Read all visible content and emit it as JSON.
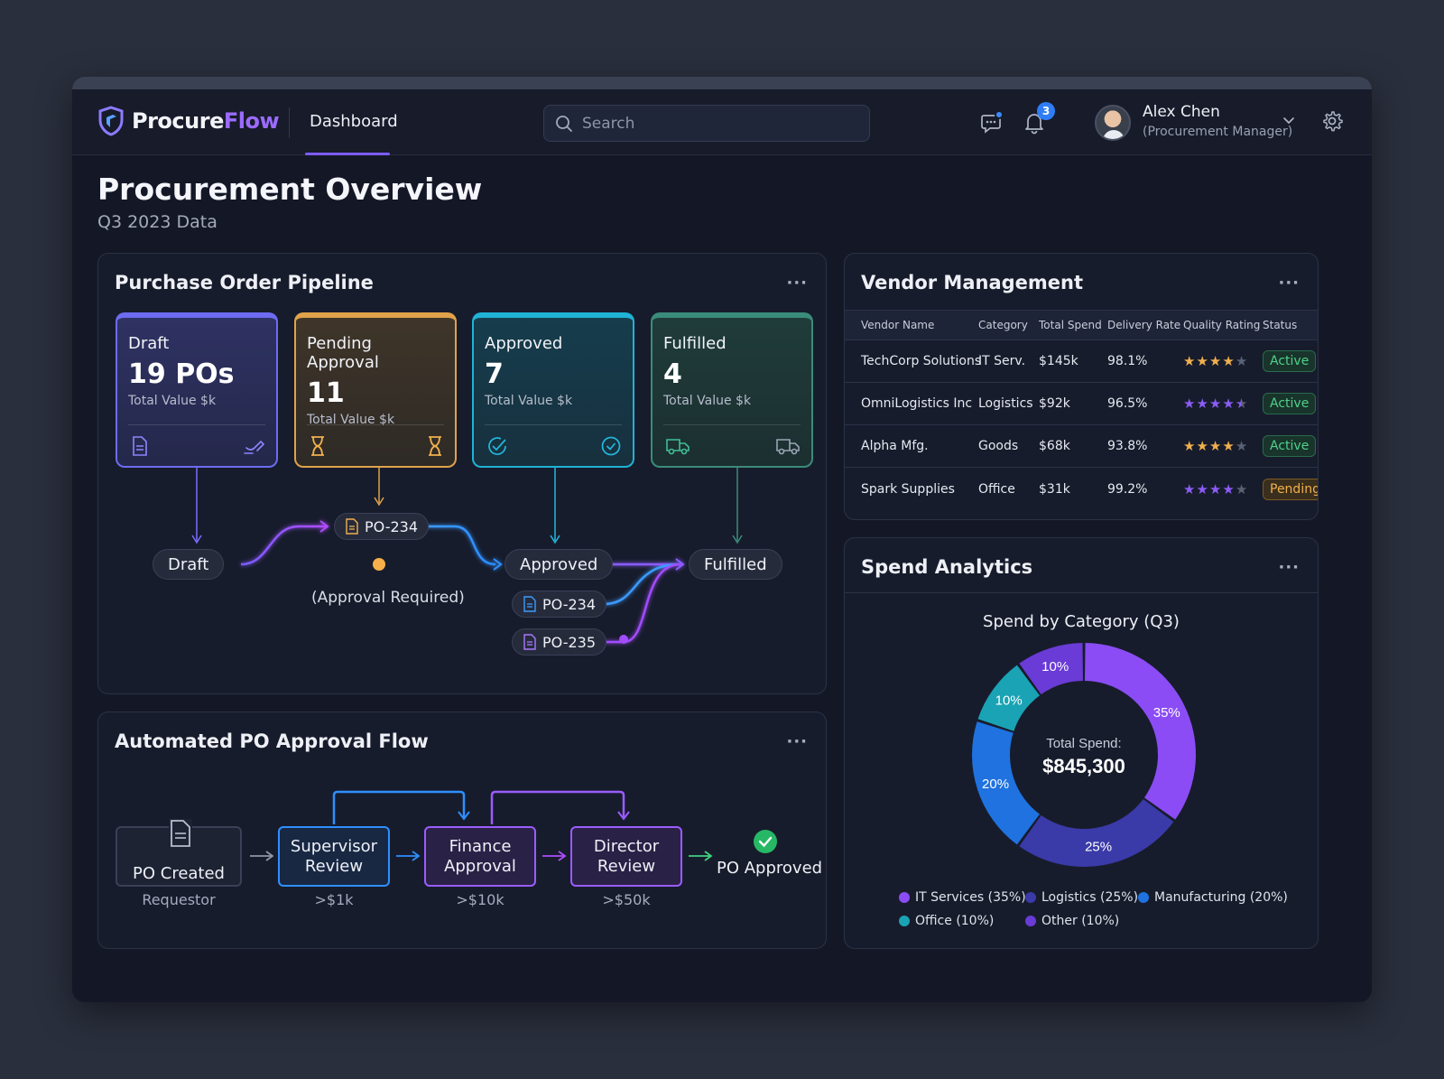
{
  "app": {
    "logo_part1": "Procure",
    "logo_part2": "Flow",
    "nav_tab": "Dashboard",
    "search_placeholder": "Search",
    "notifications_count": "3",
    "user_name": "Alex Chen",
    "user_role": "(Procurement Manager)"
  },
  "page": {
    "title": "Procurement Overview",
    "subtitle": "Q3 2023 Data"
  },
  "pipeline": {
    "title": "Purchase Order Pipeline",
    "menu": "···",
    "stages": [
      {
        "name": "Draft",
        "count": "19 POs",
        "sub": "Total Value $k"
      },
      {
        "name": "Pending Approval",
        "count": "11",
        "sub": "Total Value $k"
      },
      {
        "name": "Approved",
        "count": "7",
        "sub": "Total Value $k"
      },
      {
        "name": "Fulfilled",
        "count": "4",
        "sub": "Total Value $k"
      }
    ],
    "nodes": {
      "draft": "Draft",
      "approved": "Approved",
      "fulfilled": "Fulfilled",
      "po_top": "PO-234",
      "po_mid": "PO-234",
      "po_bot": "PO-235",
      "approval_note": "(Approval Required)"
    }
  },
  "approval_flow": {
    "title": "Automated PO Approval Flow",
    "menu": "···",
    "steps": [
      {
        "label_1": "PO Created",
        "label_2": "",
        "caption": "Requestor"
      },
      {
        "label_1": "Supervisor",
        "label_2": "Review",
        "caption": ">$1k"
      },
      {
        "label_1": "Finance",
        "label_2": "Approval",
        "caption": ">$10k"
      },
      {
        "label_1": "Director",
        "label_2": "Review",
        "caption": ">$50k"
      }
    ],
    "final": "PO Approved"
  },
  "vendors": {
    "title": "Vendor Management",
    "menu": "···",
    "columns": [
      "Vendor Name",
      "Category",
      "Total Spend",
      "Delivery Rate",
      "Quality Rating",
      "Status"
    ],
    "rows": [
      {
        "name": "TechCorp Solutions",
        "category": "IT Serv.",
        "spend": "$145k",
        "delivery": "98.1%",
        "rating": 4,
        "status": "Active"
      },
      {
        "name": "OmniLogistics Inc",
        "category": "Logistics",
        "spend": "$92k",
        "delivery": "96.5%",
        "rating": 4.5,
        "status": "Active"
      },
      {
        "name": "Alpha Mfg.",
        "category": "Goods",
        "spend": "$68k",
        "delivery": "93.8%",
        "rating": 4,
        "status": "Active"
      },
      {
        "name": "Spark Supplies",
        "category": "Office",
        "spend": "$31k",
        "delivery": "99.2%",
        "rating": 4,
        "status": "Pending"
      }
    ]
  },
  "spend": {
    "title": "Spend Analytics",
    "menu": "···",
    "center_label": "Total Spend:",
    "center_value": "$845,300"
  },
  "chart_data": {
    "type": "pie",
    "title": "Spend by Category (Q3)",
    "categories": [
      "IT Services",
      "Logistics",
      "Manufacturing",
      "Office",
      "Other"
    ],
    "values": [
      35,
      25,
      20,
      10,
      10
    ],
    "slice_labels": [
      "35%",
      "25%",
      "20%",
      "10%",
      "10%"
    ],
    "legend": [
      "IT Services (35%)",
      "Logistics (25%)",
      "Manufacturing (20%)",
      "Office (10%)",
      "Other (10%)"
    ],
    "colors": [
      "#8b4cf5",
      "#3a3aa8",
      "#1f72e0",
      "#19a3b4",
      "#6a3bd6"
    ],
    "legend_placement": "bottom"
  }
}
